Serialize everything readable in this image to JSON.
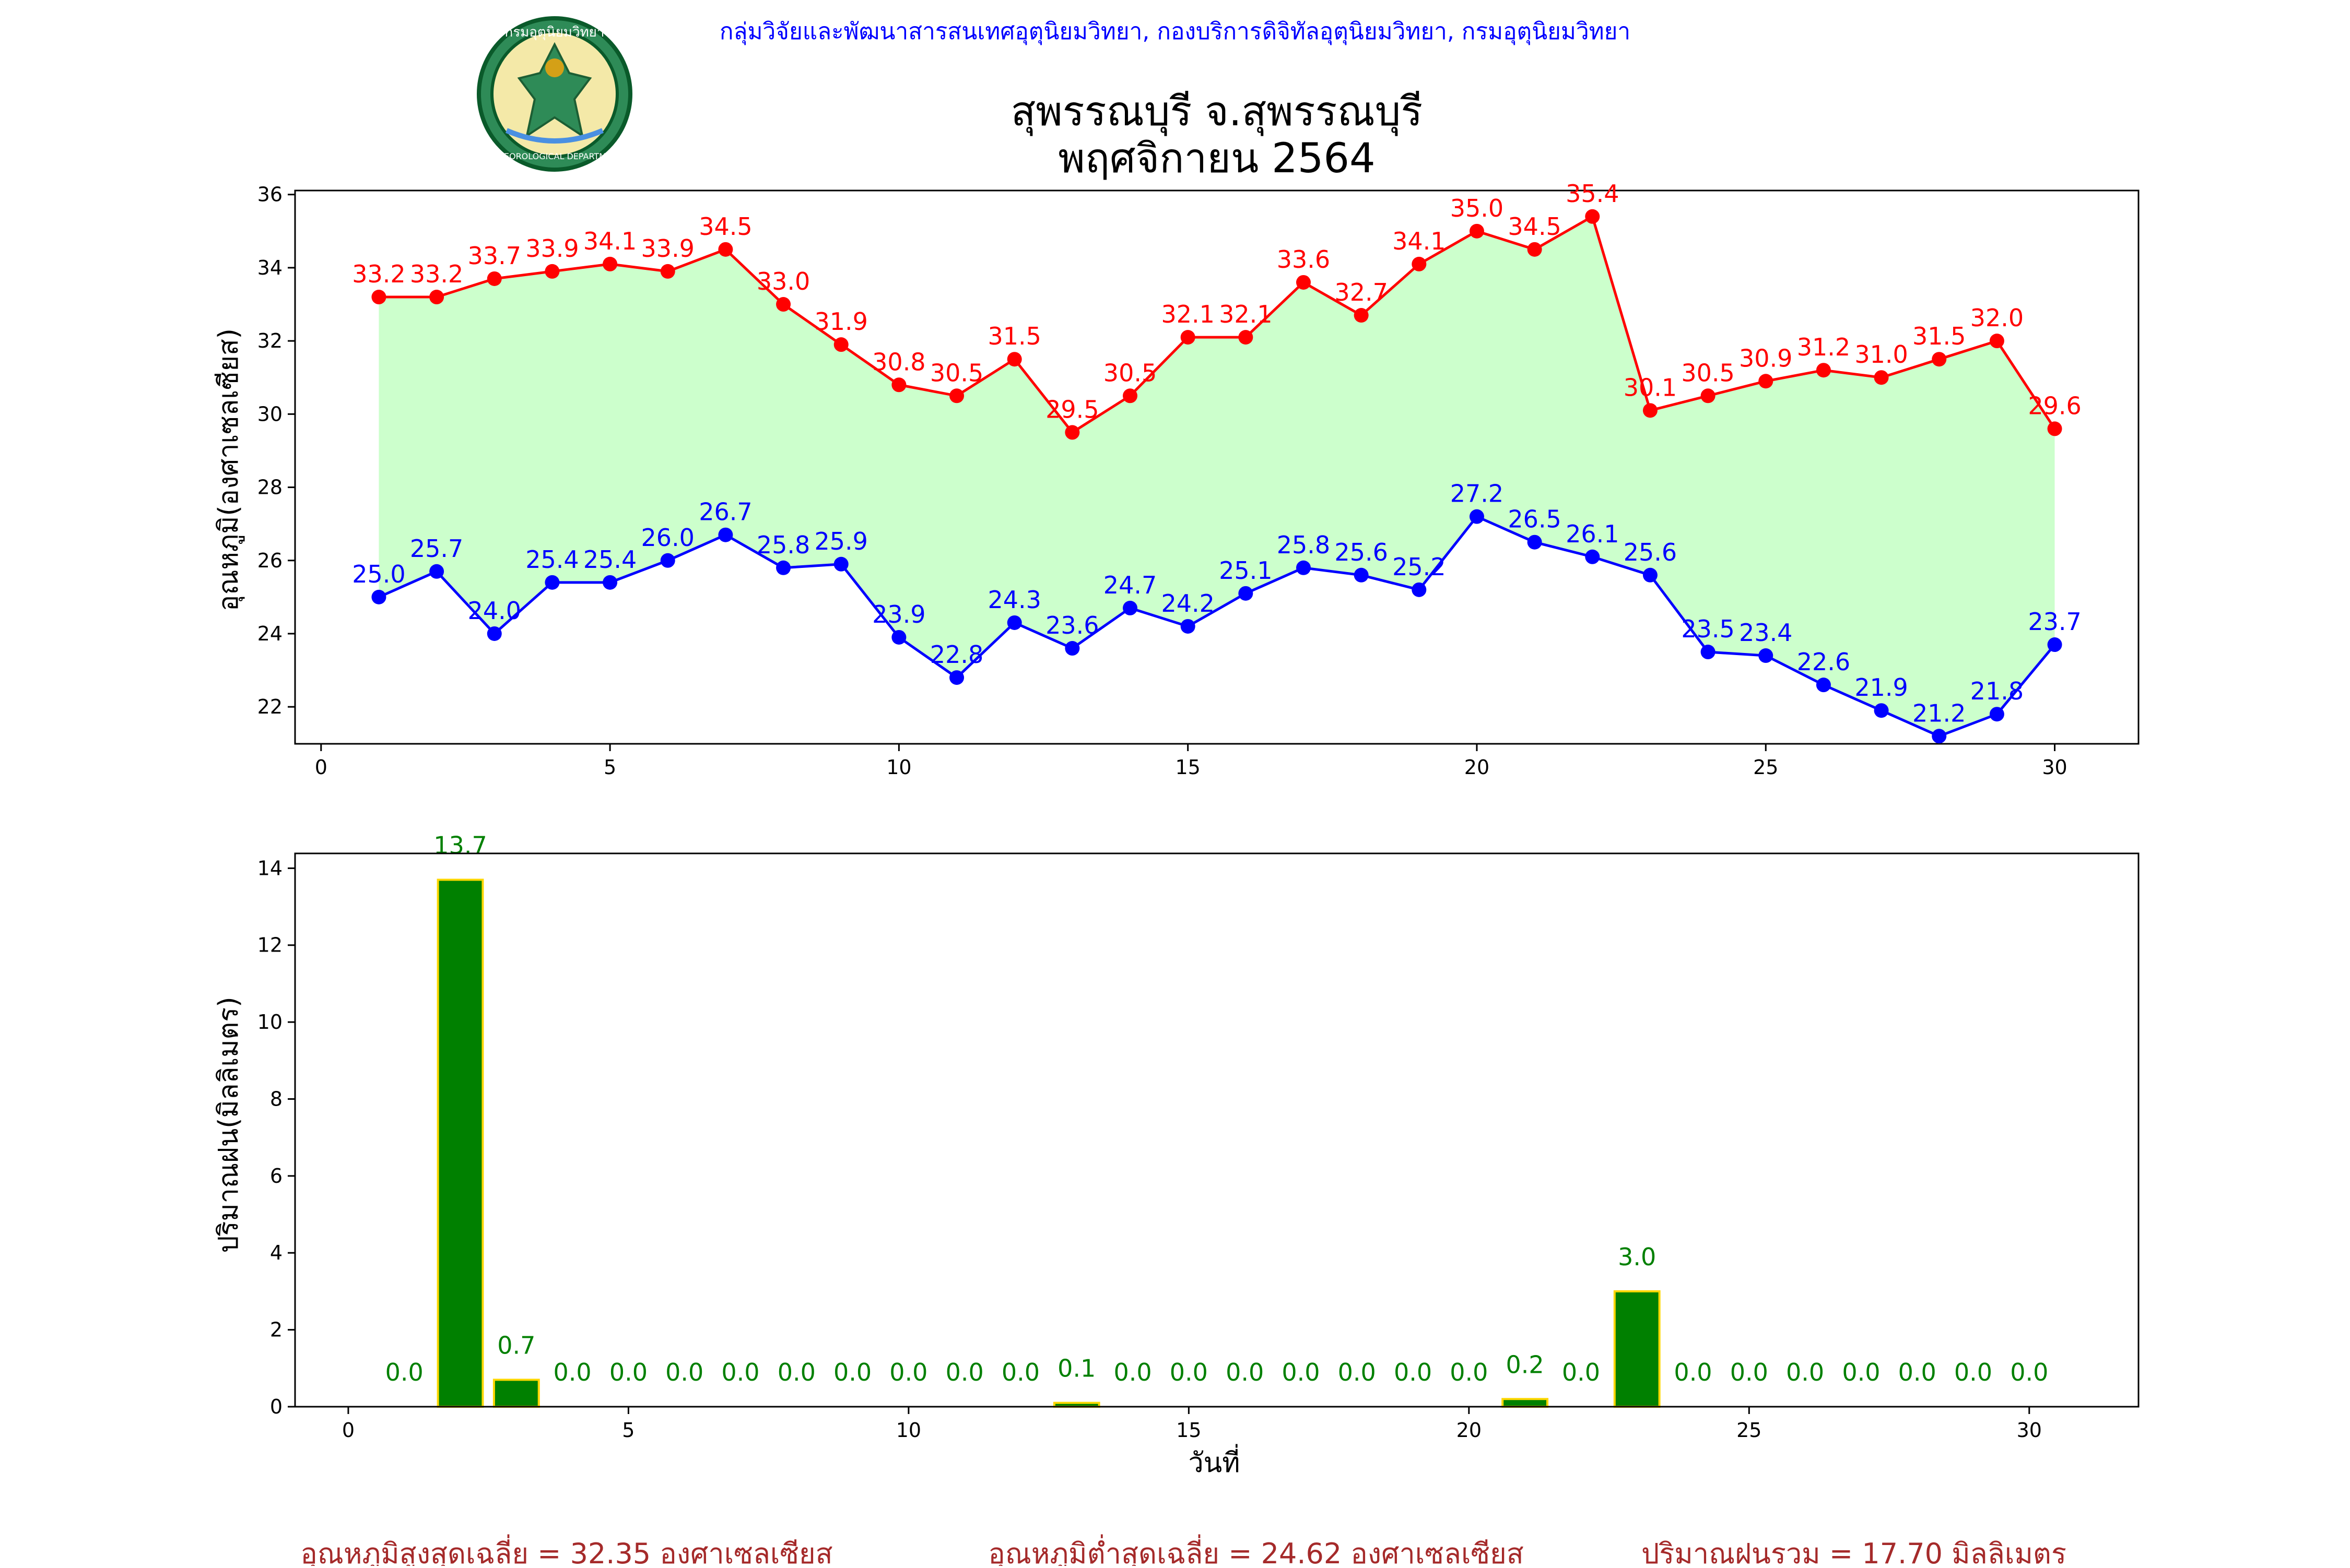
{
  "header": {
    "org_line": "กลุ่มวิจัยและพัฒนาสารสนเทศอุตุนิยมวิทยา, กองบริการดิจิทัลอุตุนิยมวิทยา, กรมอุตุนิยมวิทยา",
    "title_line1": "สุพรรณบุรี จ.สุพรรณบุรี",
    "title_line2": "พฤศจิกายน 2564",
    "logo_text": "กรมอุตุนิยมวิทยา",
    "logo_text_bottom": "METEOROLOGICAL DEPARTMENT"
  },
  "colors": {
    "max_temp": "#ff0000",
    "min_temp": "#0000ff",
    "fill": "#ccffcc",
    "rain_bar": "#008000",
    "rain_edge": "#ffd700",
    "rain_label": "#008000",
    "org_text": "#0000ff",
    "footer_text": "#a52a2a"
  },
  "chart_data": [
    {
      "type": "line",
      "ylabel": "อุณหภูมิ(องศาเซลเซียส)",
      "xlim": [
        -0.45,
        31.45
      ],
      "ylim": [
        20.99,
        36.11
      ],
      "xticks": [
        0,
        5,
        10,
        15,
        20,
        25,
        30
      ],
      "yticks": [
        22,
        24,
        26,
        28,
        30,
        32,
        34,
        36
      ],
      "x": [
        1,
        2,
        3,
        4,
        5,
        6,
        7,
        8,
        9,
        10,
        11,
        12,
        13,
        14,
        15,
        16,
        17,
        18,
        19,
        20,
        21,
        22,
        23,
        24,
        25,
        26,
        27,
        28,
        29,
        30
      ],
      "series": [
        {
          "key": "max",
          "values": [
            33.2,
            33.2,
            33.7,
            33.9,
            34.1,
            33.9,
            34.5,
            33.0,
            31.9,
            30.8,
            30.5,
            31.5,
            29.5,
            30.5,
            32.1,
            32.1,
            33.6,
            32.7,
            34.1,
            35.0,
            34.5,
            35.4,
            30.1,
            30.5,
            30.9,
            31.2,
            31.0,
            31.5,
            32.0,
            29.6
          ]
        },
        {
          "key": "min",
          "values": [
            25.0,
            25.7,
            24.0,
            25.4,
            25.4,
            26.0,
            26.7,
            25.8,
            25.9,
            23.9,
            22.8,
            24.3,
            23.6,
            24.7,
            24.2,
            25.1,
            25.8,
            25.6,
            25.2,
            27.2,
            26.5,
            26.1,
            25.6,
            23.5,
            23.4,
            22.6,
            21.9,
            21.2,
            21.8,
            23.7
          ]
        }
      ]
    },
    {
      "type": "bar",
      "xlabel": "วันที่",
      "ylabel": "ปริมาณฝน(มิลลิเมตร)",
      "xlim": [
        -0.95,
        31.95
      ],
      "ylim": [
        0,
        14.385
      ],
      "xticks": [
        0,
        5,
        10,
        15,
        20,
        25,
        30
      ],
      "yticks": [
        0,
        2,
        4,
        6,
        8,
        10,
        12,
        14
      ],
      "x": [
        1,
        2,
        3,
        4,
        5,
        6,
        7,
        8,
        9,
        10,
        11,
        12,
        13,
        14,
        15,
        16,
        17,
        18,
        19,
        20,
        21,
        22,
        23,
        24,
        25,
        26,
        27,
        28,
        29,
        30
      ],
      "values": [
        0.0,
        13.7,
        0.7,
        0.0,
        0.0,
        0.0,
        0.0,
        0.0,
        0.0,
        0.0,
        0.0,
        0.0,
        0.1,
        0.0,
        0.0,
        0.0,
        0.0,
        0.0,
        0.0,
        0.0,
        0.2,
        0.0,
        3.0,
        0.0,
        0.0,
        0.0,
        0.0,
        0.0,
        0.0,
        0.0
      ]
    }
  ],
  "footer": {
    "avg_max": "อุณหภูมิสูงสุดเฉลี่ย = 32.35 องศาเซลเซียส",
    "avg_min": "อุณหภูมิต่ำสุดเฉลี่ย = 24.62 องศาเซลเซียส",
    "rain_total": "ปริมาณฝนรวม = 17.70 มิลลิเมตร"
  }
}
